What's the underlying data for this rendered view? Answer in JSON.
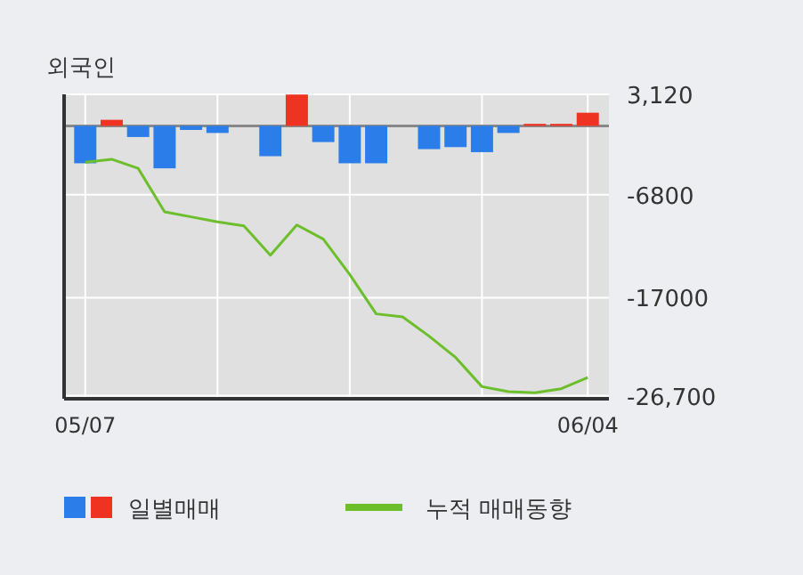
{
  "chart_data": {
    "type": "bar",
    "title": "외국인",
    "categories": [
      "05/07",
      null,
      null,
      null,
      null,
      null,
      null,
      null,
      null,
      null,
      null,
      null,
      null,
      null,
      null,
      null,
      null,
      null,
      null,
      "06/04"
    ],
    "series": [
      {
        "name": "일별매매",
        "colors": [
          "#2b7de9",
          "#ee3322",
          "#2b7de9",
          "#2b7de9",
          "#2b7de9",
          "#2b7de9",
          "#2b7de9",
          "#2b7de9",
          "#ee3322",
          "#2b7de9",
          "#2b7de9",
          "#2b7de9",
          "#2b7de9",
          "#2b7de9",
          "#2b7de9",
          "#2b7de9",
          "#2b7de9",
          "#ee3322",
          "#ee3322",
          "#ee3322"
        ],
        "values": [
          -3700,
          600,
          -1100,
          -4200,
          -400,
          -700,
          null,
          -3000,
          3100,
          -1600,
          -3700,
          -3700,
          null,
          -2300,
          -2100,
          -2600,
          -700,
          200,
          200,
          1300
        ]
      },
      {
        "name": "누적 매매동향",
        "type": "line",
        "color": "#6cbf2a",
        "values": [
          -3600,
          -3300,
          -4200,
          -8500,
          -9000,
          -9500,
          -9900,
          -12800,
          -9800,
          -11200,
          -14700,
          -18600,
          -18900,
          -20800,
          -22900,
          -25800,
          -26300,
          -26400,
          -26000,
          -24900
        ]
      }
    ],
    "ylim": [
      -27000,
      3120
    ],
    "yticks": [
      {
        "value": 3120,
        "label": "3,120"
      },
      -6800,
      -17000,
      {
        "value": -26700,
        "label": "-26,700"
      }
    ],
    "ref_lines": [
      {
        "axis": "y",
        "value": 0,
        "color": "#888888"
      }
    ],
    "grid": true,
    "legend": "bottom"
  }
}
